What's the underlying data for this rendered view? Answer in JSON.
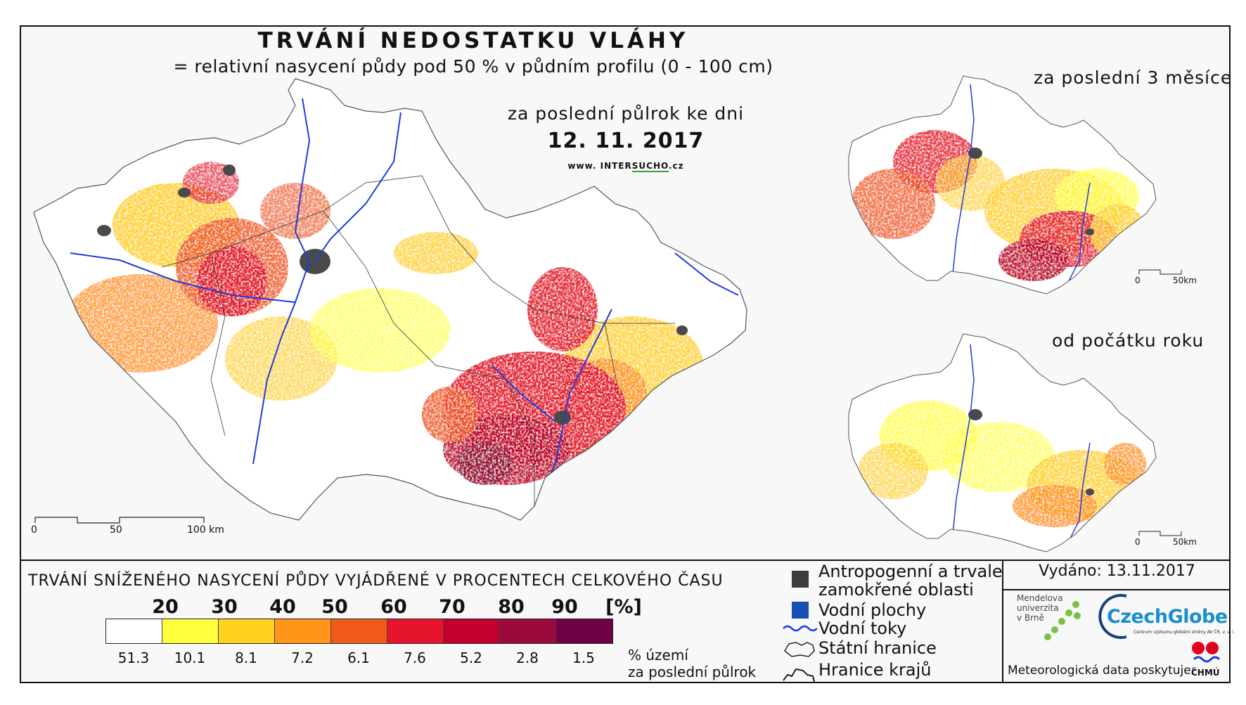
{
  "map": {
    "title": "TRVÁNÍ NEDOSTATKU VLÁHY",
    "subtitle": "= relativní nasycení půdy pod 50 % v půdním profilu (0 - 100 cm)",
    "period_label": "za poslední půlrok ke dni",
    "date": "12. 11. 2017",
    "website_prefix": "www. INTER",
    "website_mark": "SUCHO",
    "website_suffix": ".cz",
    "scale": {
      "zero": "0",
      "fifty": "50",
      "hundred": "100 km"
    }
  },
  "mini_maps": [
    {
      "label": "za poslední 3 měsíce",
      "scale_zero": "0",
      "scale_end": "50km"
    },
    {
      "label": "od počátku roku",
      "scale_zero": "0",
      "scale_end": "50km"
    }
  ],
  "legend": {
    "title": "TRVÁNÍ SNÍŽENÉHO NASYCENÍ PŮDY VYJÁDŘENÉ V PROCENTECH CELKOVÉHO ČASU",
    "ticks": [
      "20",
      "30",
      "40",
      "50",
      "60",
      "70",
      "80",
      "90",
      "[%]"
    ],
    "colors": [
      "#ffffff",
      "#ffff3c",
      "#ffd21e",
      "#ff9619",
      "#f05a19",
      "#e6142d",
      "#c3002d",
      "#9b0a3c",
      "#6e0046"
    ],
    "percentages": [
      "51.3",
      "10.1",
      "8.1",
      "7.2",
      "6.1",
      "7.6",
      "5.2",
      "2.8",
      "1.5"
    ],
    "percent_label_line1": "% území",
    "percent_label_line2": "za poslední půlrok"
  },
  "key": {
    "anthropogenic_line1": "Antropogenní a trvale",
    "anthropogenic_line2": "zamokřené oblasti",
    "water_bodies": "Vodní plochy",
    "rivers": "Vodní toky",
    "state_border": "Státní hranice",
    "regional_border": "Hranice krajů",
    "colors": {
      "anthropogenic": "#3c3c3c",
      "water_bodies": "#1450b4",
      "rivers": "#1e3cdc"
    }
  },
  "credits": {
    "issued": "Vydáno: 13.11.2017",
    "mendel_line1": "Mendelova",
    "mendel_line2": "univerzita",
    "mendel_line3": "v Brně",
    "czechglobe": "CzechGlobe",
    "czechglobe_sub": "Centrum výzkumu globální změny AV ČR, v. v. i.",
    "meteo": "Meteorologická data poskytuje:",
    "chmu": "ČHMÚ"
  }
}
